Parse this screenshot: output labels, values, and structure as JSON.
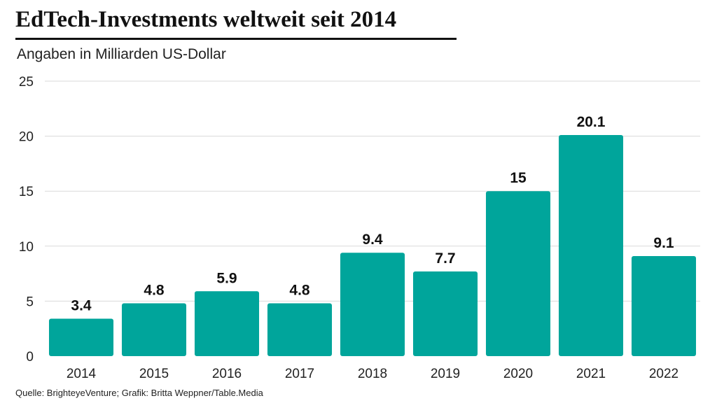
{
  "header": {
    "title": "EdTech-Investments weltweit seit 2014",
    "subtitle": "Angaben in Milliarden US-Dollar"
  },
  "footer": {
    "source": "Quelle: BrighteyeVenture; Grafik: Britta Weppner/Table.Media"
  },
  "colors": {
    "bar": "#00a59b",
    "grid": "#d9d9d9",
    "text": "#111111"
  },
  "chart_data": {
    "type": "bar",
    "title": "EdTech-Investments weltweit seit 2014",
    "subtitle": "Angaben in Milliarden US-Dollar",
    "categories": [
      "2014",
      "2015",
      "2016",
      "2017",
      "2018",
      "2019",
      "2020",
      "2021",
      "2022"
    ],
    "values": [
      3.4,
      4.8,
      5.9,
      4.8,
      9.4,
      7.7,
      15,
      20.1,
      9.1
    ],
    "data_labels": [
      "3.4",
      "4.8",
      "5.9",
      "4.8",
      "9.4",
      "7.7",
      "15",
      "20.1",
      "9.1"
    ],
    "y_ticks": [
      "0",
      "5",
      "10",
      "15",
      "20",
      "25"
    ],
    "ylim": [
      0,
      25
    ],
    "grid": true,
    "legend": "none"
  }
}
